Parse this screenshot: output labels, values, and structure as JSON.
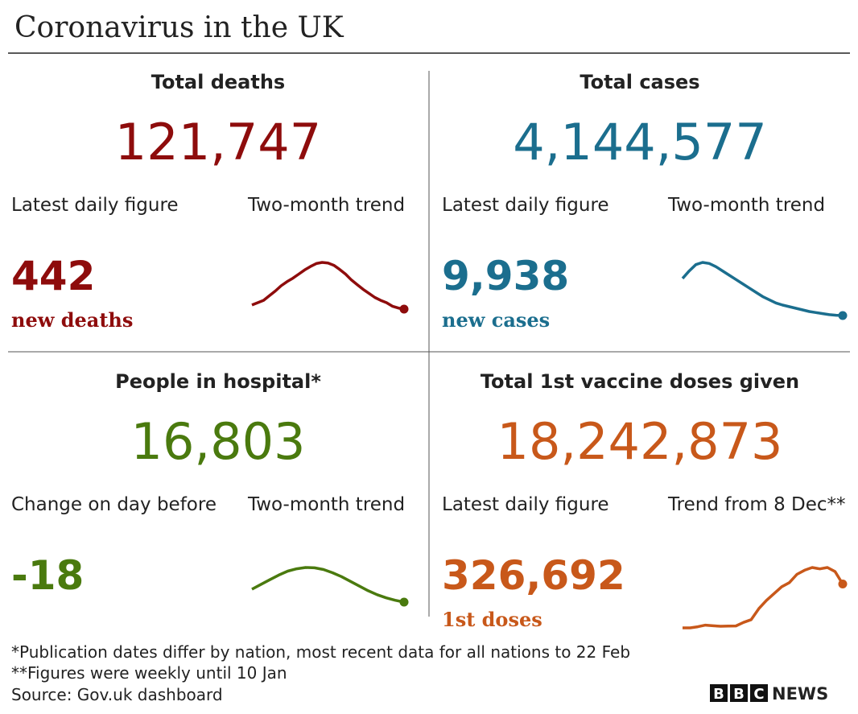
{
  "title": "Coronavirus in the UK",
  "panels": [
    {
      "title": "Total deaths",
      "total": "121,747",
      "label_left": "Latest daily figure",
      "label_right": "Two-month trend",
      "latest": "442",
      "latest_label": "new deaths",
      "color": "#8e0c0c",
      "trend": [
        520,
        560,
        600,
        680,
        760,
        850,
        920,
        980,
        1050,
        1120,
        1180,
        1230,
        1250,
        1240,
        1200,
        1130,
        1050,
        950,
        870,
        790,
        720,
        650,
        600,
        560,
        500,
        470,
        450
      ]
    },
    {
      "title": "Total cases",
      "total": "4,144,577",
      "label_left": "Latest daily figure",
      "label_right": "Two-month trend",
      "latest": "9,938",
      "latest_label": "new cases",
      "color": "#1b6e8e",
      "trend": [
        45000,
        52000,
        58000,
        60000,
        59000,
        56000,
        52000,
        48000,
        44000,
        40000,
        36000,
        32000,
        28000,
        25000,
        22000,
        20000,
        18500,
        17000,
        15500,
        14000,
        13000,
        12000,
        11000,
        10500,
        10200
      ]
    },
    {
      "title": "People in hospital*",
      "total": "16,803",
      "label_left": "Change on day before",
      "label_right": "Two-month trend",
      "latest": "-18",
      "color": "#4a7a0e",
      "trend": [
        25000,
        28000,
        31000,
        34000,
        36500,
        38000,
        38800,
        38600,
        37500,
        35500,
        33000,
        30000,
        27000,
        24000,
        21500,
        19500,
        18000,
        16803
      ]
    },
    {
      "title": "Total 1st vaccine doses given",
      "total": "18,242,873",
      "label_left": "Latest daily figure",
      "label_right": "Trend from 8 Dec**",
      "latest": "326,692",
      "latest_label": "1st doses",
      "color": "#c8581a",
      "trend": [
        0,
        0,
        8000,
        20000,
        15000,
        12000,
        13000,
        14000,
        40000,
        60000,
        140000,
        200000,
        250000,
        300000,
        330000,
        390000,
        420000,
        440000,
        430000,
        440000,
        410000,
        320000
      ]
    }
  ],
  "footnotes": [
    "*Publication dates differ by nation, most recent data for all nations to 22 Feb",
    "**Figures were weekly until 10 Jan",
    "Source: Gov.uk dashboard"
  ],
  "logo": {
    "letters": [
      "B",
      "B",
      "C"
    ],
    "word": "NEWS"
  }
}
